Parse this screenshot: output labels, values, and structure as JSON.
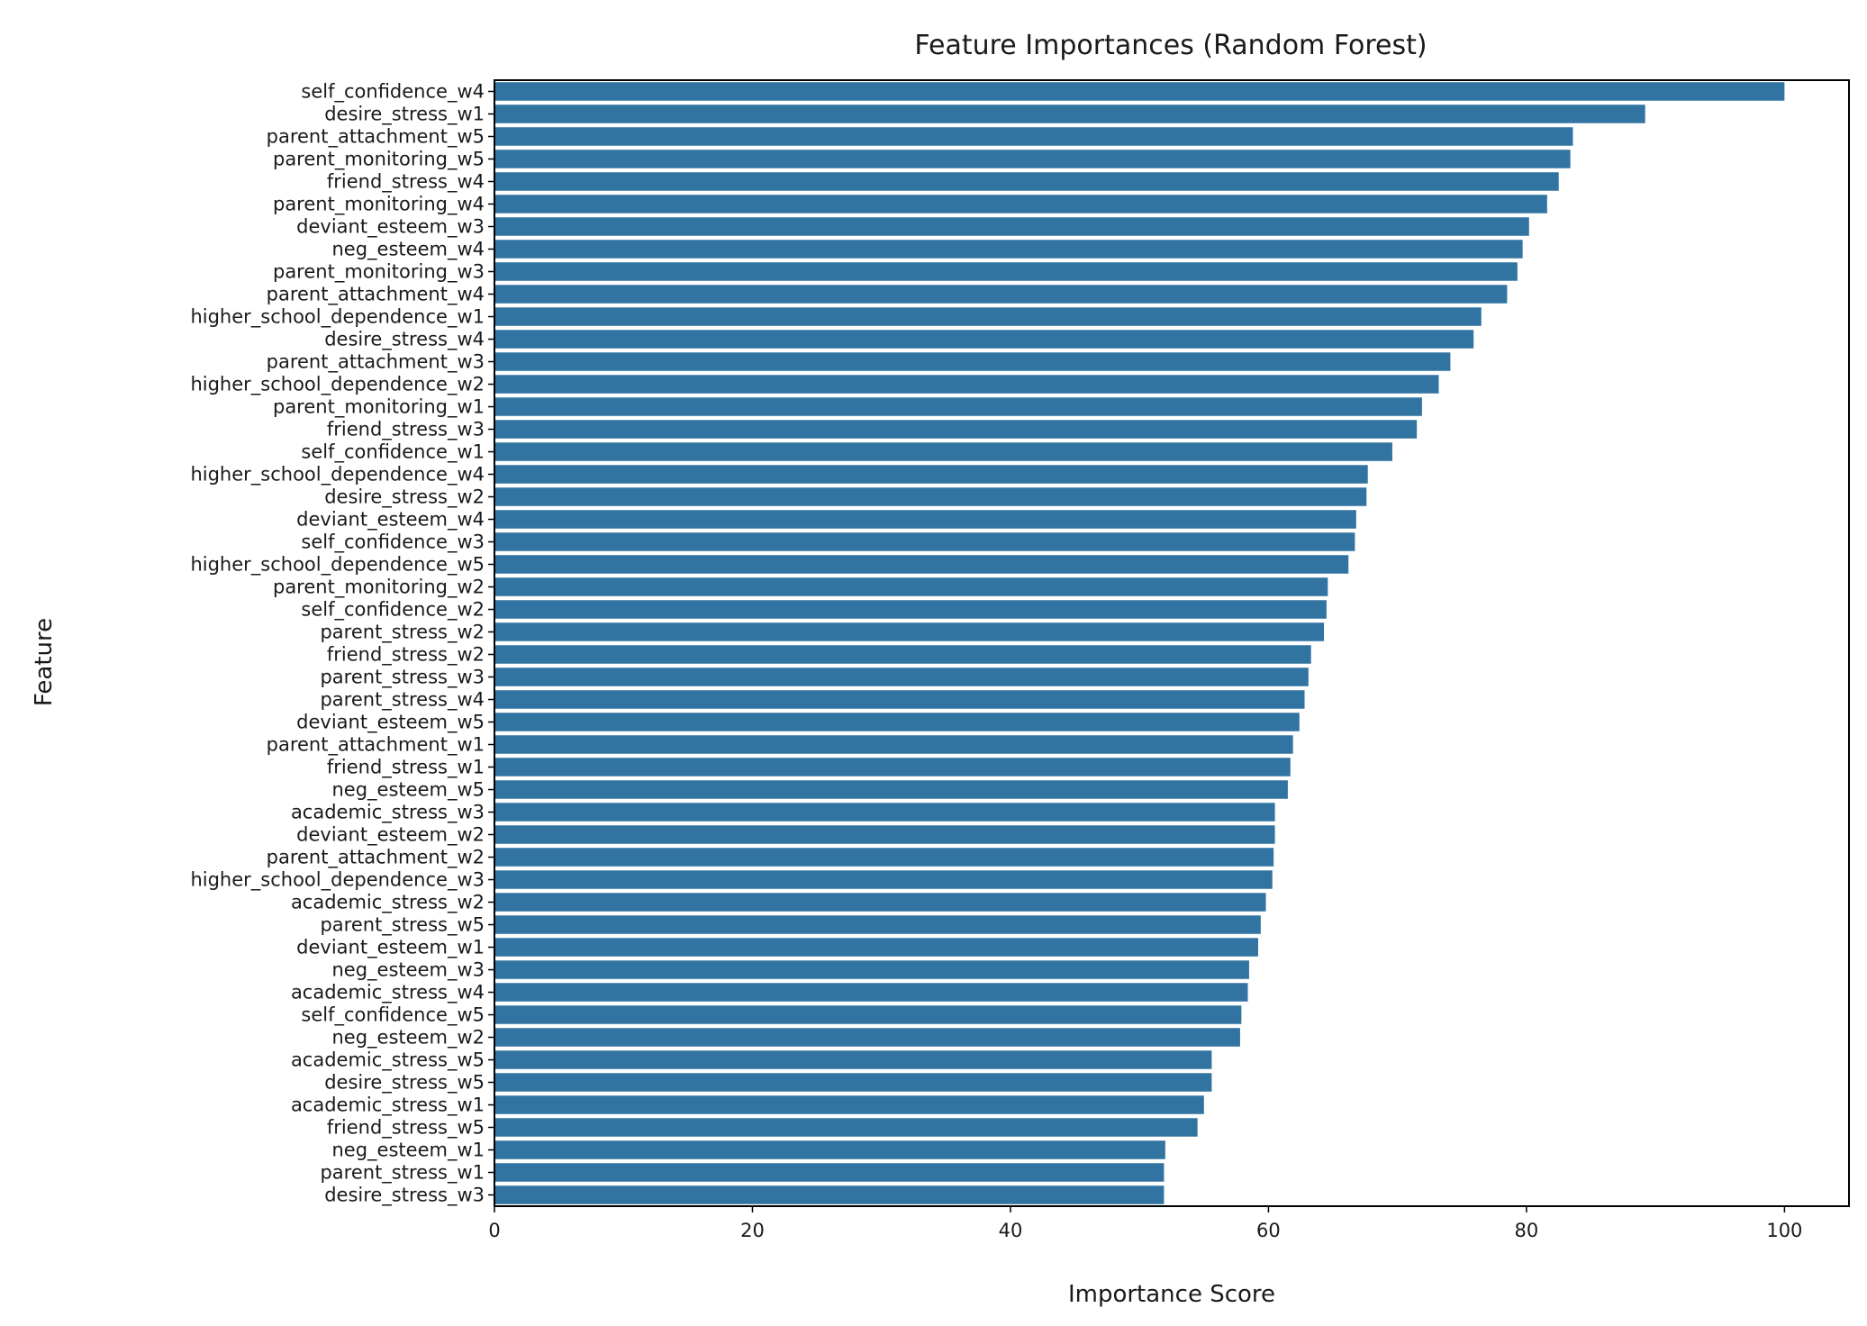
{
  "chart_data": {
    "type": "bar",
    "orientation": "horizontal",
    "title": "Feature Importances (Random Forest)",
    "xlabel": "Importance Score",
    "ylabel": "Feature",
    "xlim": [
      0,
      105
    ],
    "xticks": [
      0,
      20,
      40,
      60,
      80,
      100
    ],
    "grid": false,
    "bar_color": "#3274a1",
    "categories": [
      "self_confidence_w4",
      "desire_stress_w1",
      "parent_attachment_w5",
      "parent_monitoring_w5",
      "friend_stress_w4",
      "parent_monitoring_w4",
      "deviant_esteem_w3",
      "neg_esteem_w4",
      "parent_monitoring_w3",
      "parent_attachment_w4",
      "higher_school_dependence_w1",
      "desire_stress_w4",
      "parent_attachment_w3",
      "higher_school_dependence_w2",
      "parent_monitoring_w1",
      "friend_stress_w3",
      "self_confidence_w1",
      "higher_school_dependence_w4",
      "desire_stress_w2",
      "deviant_esteem_w4",
      "self_confidence_w3",
      "higher_school_dependence_w5",
      "parent_monitoring_w2",
      "self_confidence_w2",
      "parent_stress_w2",
      "friend_stress_w2",
      "parent_stress_w3",
      "parent_stress_w4",
      "deviant_esteem_w5",
      "parent_attachment_w1",
      "friend_stress_w1",
      "neg_esteem_w5",
      "academic_stress_w3",
      "deviant_esteem_w2",
      "parent_attachment_w2",
      "higher_school_dependence_w3",
      "academic_stress_w2",
      "parent_stress_w5",
      "deviant_esteem_w1",
      "neg_esteem_w3",
      "academic_stress_w4",
      "self_confidence_w5",
      "neg_esteem_w2",
      "academic_stress_w5",
      "desire_stress_w5",
      "academic_stress_w1",
      "friend_stress_w5",
      "neg_esteem_w1",
      "parent_stress_w1",
      "desire_stress_w3"
    ],
    "values": [
      100.0,
      89.2,
      83.6,
      83.4,
      82.5,
      81.6,
      80.2,
      79.7,
      79.3,
      78.5,
      76.5,
      75.9,
      74.1,
      73.2,
      71.9,
      71.5,
      69.6,
      67.7,
      67.6,
      66.8,
      66.7,
      66.2,
      64.6,
      64.5,
      64.3,
      63.3,
      63.1,
      62.8,
      62.4,
      61.9,
      61.7,
      61.5,
      60.5,
      60.5,
      60.4,
      60.3,
      59.8,
      59.4,
      59.2,
      58.5,
      58.4,
      57.9,
      57.8,
      55.6,
      55.6,
      55.0,
      54.5,
      52.0,
      51.9,
      51.9
    ]
  }
}
